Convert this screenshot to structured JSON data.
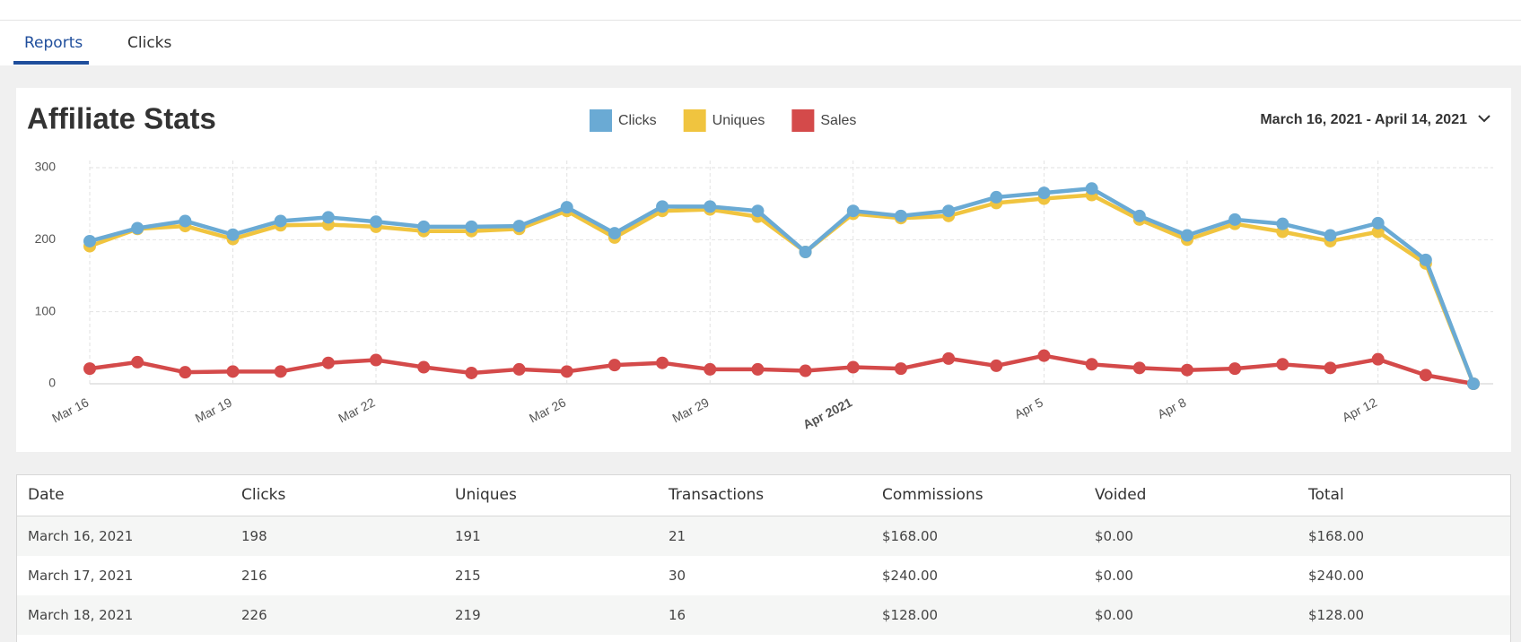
{
  "tabs": [
    "Reports",
    "Clicks"
  ],
  "chart_data": {
    "type": "line",
    "title": "Affiliate Stats",
    "date_range": "March 16, 2021 - April 14, 2021",
    "categories": [
      "Mar 16",
      null,
      null,
      "Mar 19",
      null,
      null,
      "Mar 22",
      null,
      null,
      null,
      "Mar 26",
      null,
      null,
      "Mar 29",
      null,
      null,
      "Apr 2021",
      null,
      null,
      null,
      "Apr 5",
      null,
      null,
      "Apr 8",
      null,
      null,
      null,
      "Apr 12",
      null,
      null
    ],
    "series": [
      {
        "name": "Clicks",
        "color": "#6aaad4",
        "values": [
          198,
          216,
          226,
          207,
          226,
          231,
          225,
          218,
          218,
          219,
          245,
          209,
          246,
          246,
          240,
          183,
          240,
          233,
          240,
          259,
          265,
          271,
          233,
          206,
          228,
          222,
          206,
          223,
          172,
          0
        ]
      },
      {
        "name": "Uniques",
        "color": "#f0c43f",
        "values": [
          191,
          215,
          219,
          201,
          220,
          221,
          218,
          212,
          212,
          215,
          240,
          203,
          240,
          242,
          232,
          183,
          236,
          230,
          233,
          251,
          257,
          262,
          228,
          200,
          222,
          211,
          198,
          211,
          167,
          0
        ]
      },
      {
        "name": "Sales",
        "color": "#d44a4a",
        "values": [
          21,
          30,
          16,
          17,
          17,
          29,
          33,
          23,
          15,
          20,
          17,
          26,
          29,
          20,
          20,
          18,
          23,
          21,
          35,
          25,
          39,
          27,
          22,
          19,
          21,
          27,
          22,
          34,
          12,
          0
        ]
      }
    ],
    "ylim": [
      0,
      300
    ],
    "yticks": [
      0,
      100,
      200,
      300
    ],
    "grid": true
  },
  "table": {
    "columns": [
      "Date",
      "Clicks",
      "Uniques",
      "Transactions",
      "Commissions",
      "Voided",
      "Total"
    ],
    "rows": [
      [
        "March 16, 2021",
        "198",
        "191",
        "21",
        "$168.00",
        "$0.00",
        "$168.00"
      ],
      [
        "March 17, 2021",
        "216",
        "215",
        "30",
        "$240.00",
        "$0.00",
        "$240.00"
      ],
      [
        "March 18, 2021",
        "226",
        "219",
        "16",
        "$128.00",
        "$0.00",
        "$128.00"
      ]
    ]
  }
}
